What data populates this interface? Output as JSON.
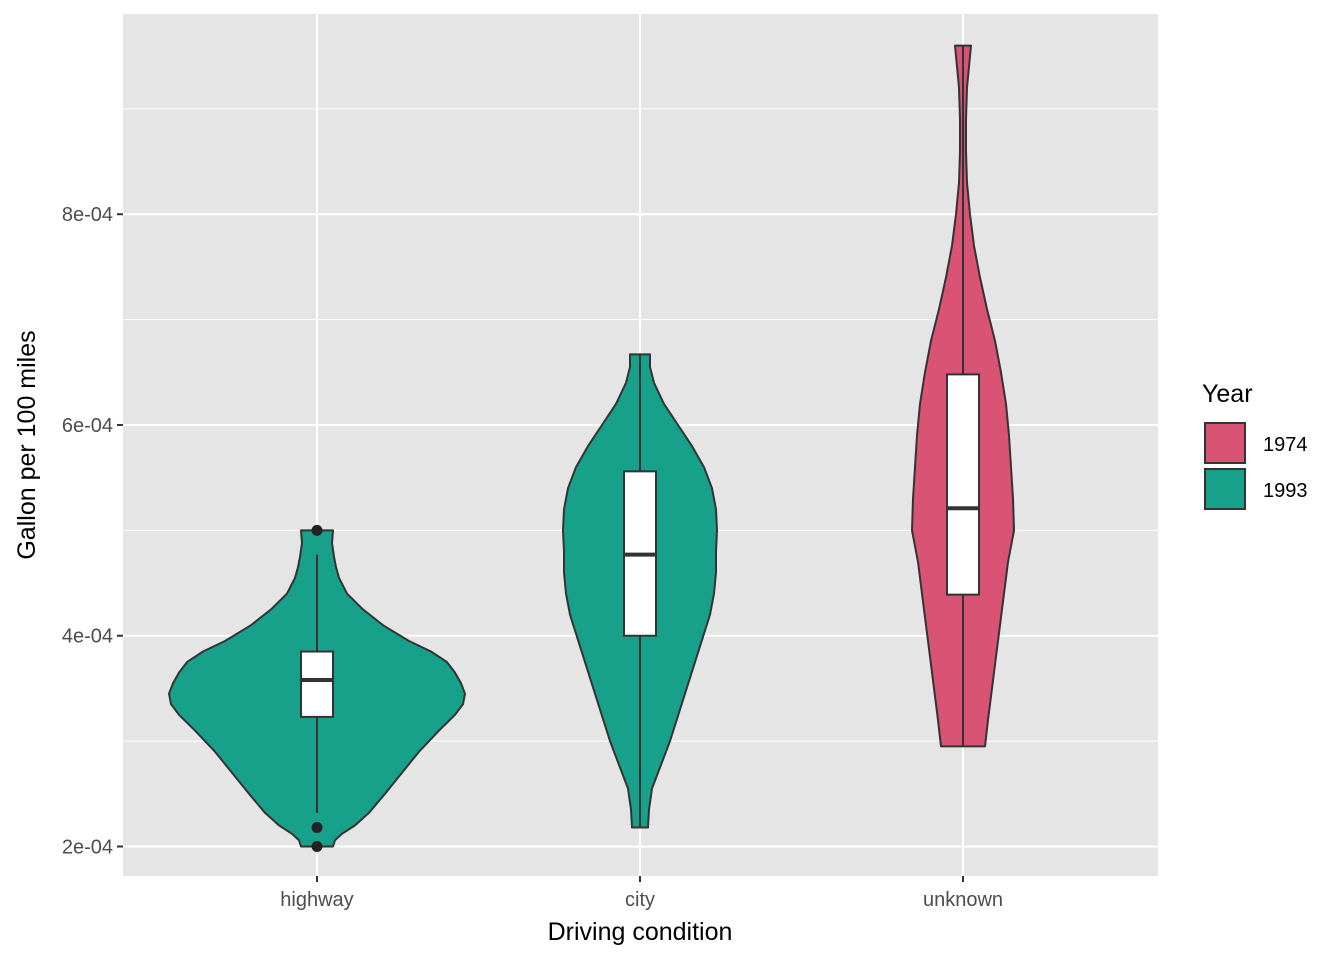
{
  "chart_data": {
    "type": "violin",
    "title": "",
    "xlabel": "Driving condition",
    "ylabel": "Gallon per 100 miles",
    "ylim": [
      0.000172,
      0.00099
    ],
    "y_ticks": [
      0.0002,
      0.0004,
      0.0006,
      0.0008
    ],
    "y_tick_labels": [
      "2e-04",
      "4e-04",
      "6e-04",
      "8e-04"
    ],
    "y_minor_ticks": [
      0.0003,
      0.0005,
      0.0007,
      0.0009
    ],
    "grid": true,
    "categories": [
      "highway",
      "city",
      "unknown"
    ],
    "legend": {
      "title": "Year",
      "position": "right",
      "entries": [
        {
          "label": "1974",
          "color": "#d95374"
        },
        {
          "label": "1993",
          "color": "#17a08a"
        }
      ]
    },
    "series": [
      {
        "category": "highway",
        "year": "1993",
        "color": "#17a08a",
        "density": [
          [
            0.0002,
            0.16
          ],
          [
            0.000206,
            0.18
          ],
          [
            0.000212,
            0.25
          ],
          [
            0.00022,
            0.38
          ],
          [
            0.000232,
            0.52
          ],
          [
            0.00025,
            0.68
          ],
          [
            0.00027,
            0.85
          ],
          [
            0.00029,
            1.02
          ],
          [
            0.00031,
            1.22
          ],
          [
            0.000325,
            1.38
          ],
          [
            0.000335,
            1.46
          ],
          [
            0.000345,
            1.48
          ],
          [
            0.000355,
            1.44
          ],
          [
            0.000365,
            1.38
          ],
          [
            0.000375,
            1.3
          ],
          [
            0.000385,
            1.14
          ],
          [
            0.000395,
            0.92
          ],
          [
            0.00041,
            0.66
          ],
          [
            0.000425,
            0.46
          ],
          [
            0.00044,
            0.3
          ],
          [
            0.000455,
            0.22
          ],
          [
            0.000465,
            0.19
          ],
          [
            0.000475,
            0.17
          ],
          [
            0.000488,
            0.15
          ],
          [
            0.0005,
            0.16
          ]
        ],
        "box": {
          "q1": 0.000323,
          "median": 0.000358,
          "q3": 0.000385,
          "whisker_low": 0.000232,
          "whisker_high": 0.000477
        },
        "outliers": [
          0.0002,
          0.000218,
          0.0005
        ]
      },
      {
        "category": "city",
        "year": "1993",
        "color": "#17a08a",
        "density": [
          [
            0.000218,
            0.08
          ],
          [
            0.000235,
            0.09
          ],
          [
            0.000255,
            0.12
          ],
          [
            0.000275,
            0.2
          ],
          [
            0.0003,
            0.3
          ],
          [
            0.00033,
            0.4
          ],
          [
            0.00036,
            0.5
          ],
          [
            0.00039,
            0.6
          ],
          [
            0.00042,
            0.7
          ],
          [
            0.00044,
            0.74
          ],
          [
            0.00046,
            0.76
          ],
          [
            0.00048,
            0.76
          ],
          [
            0.0005,
            0.77
          ],
          [
            0.00052,
            0.76
          ],
          [
            0.00054,
            0.72
          ],
          [
            0.00056,
            0.64
          ],
          [
            0.00058,
            0.52
          ],
          [
            0.0006,
            0.38
          ],
          [
            0.00062,
            0.24
          ],
          [
            0.00064,
            0.14
          ],
          [
            0.000655,
            0.1
          ],
          [
            0.000667,
            0.1
          ]
        ],
        "box": {
          "q1": 0.0004,
          "median": 0.000477,
          "q3": 0.000556,
          "whisker_low": 0.000218,
          "whisker_high": 0.000667
        },
        "outliers": []
      },
      {
        "category": "unknown",
        "year": "1974",
        "color": "#d95374",
        "density": [
          [
            0.000295,
            0.22
          ],
          [
            0.00032,
            0.25
          ],
          [
            0.00035,
            0.29
          ],
          [
            0.00038,
            0.33
          ],
          [
            0.00041,
            0.37
          ],
          [
            0.00044,
            0.41
          ],
          [
            0.00047,
            0.45
          ],
          [
            0.0005,
            0.51
          ],
          [
            0.00053,
            0.5
          ],
          [
            0.00056,
            0.48
          ],
          [
            0.00059,
            0.46
          ],
          [
            0.00062,
            0.43
          ],
          [
            0.00065,
            0.38
          ],
          [
            0.00068,
            0.32
          ],
          [
            0.00071,
            0.24
          ],
          [
            0.00074,
            0.17
          ],
          [
            0.00077,
            0.11
          ],
          [
            0.0008,
            0.07
          ],
          [
            0.00083,
            0.04
          ],
          [
            0.00086,
            0.03
          ],
          [
            0.00089,
            0.03
          ],
          [
            0.00092,
            0.04
          ],
          [
            0.00096,
            0.08
          ]
        ],
        "box": {
          "q1": 0.000439,
          "median": 0.000521,
          "q3": 0.000648,
          "whisker_low": 0.000295,
          "whisker_high": 0.00096
        },
        "outliers": []
      }
    ]
  }
}
